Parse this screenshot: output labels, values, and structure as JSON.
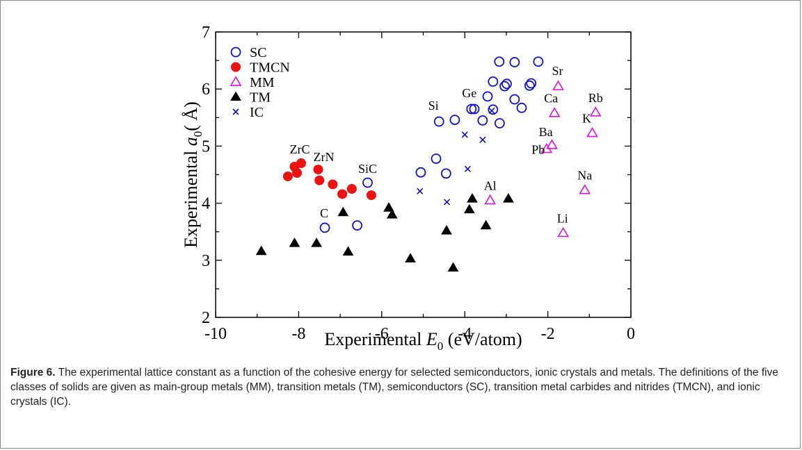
{
  "caption": {
    "label": "Figure 6.",
    "text": " The experimental lattice constant as a function of the cohesive energy for selected semiconductors, ionic crystals and metals. The definitions of the five classes of solids are given as main-group metals (MM), transition metals (TM), semiconductors (SC), transition metal carbides and nitrides (TMCN), and ionic crystals (IC)."
  },
  "chart_data": {
    "type": "scatter",
    "xlabel_prefix": "Experimental ",
    "xlabel_var": "E",
    "xlabel_sub": "0",
    "xlabel_suffix": " (eV/atom)",
    "ylabel_prefix": "Experimental ",
    "ylabel_var": "a",
    "ylabel_sub": "0",
    "ylabel_suffix": "( Å)",
    "xlim": [
      -10,
      0
    ],
    "ylim": [
      2,
      7
    ],
    "xticks": [
      -10,
      -8,
      -6,
      -4,
      -2,
      0
    ],
    "yticks": [
      2,
      3,
      4,
      5,
      6,
      7
    ],
    "legend_position": "top-left",
    "colors": {
      "SC": "#1010d0",
      "TMCN": "#ee1111",
      "MM": "#dd11dd",
      "TM": "#000000",
      "IC": "#1010d0"
    },
    "series": [
      {
        "name": "SC",
        "marker": "open-circle",
        "points": [
          [
            -7.37,
            3.57
          ],
          [
            -6.59,
            3.61
          ],
          [
            -6.34,
            4.36
          ],
          [
            -5.06,
            4.54
          ],
          [
            -4.69,
            4.78
          ],
          [
            -4.45,
            4.52
          ],
          [
            -4.62,
            5.43
          ],
          [
            -4.24,
            5.46
          ],
          [
            -3.84,
            5.65
          ],
          [
            -3.77,
            5.65
          ],
          [
            -3.57,
            5.45
          ],
          [
            -3.45,
            5.87
          ],
          [
            -3.32,
            5.64
          ],
          [
            -3.16,
            5.4
          ],
          [
            -3.04,
            6.05
          ],
          [
            -2.99,
            6.09
          ],
          [
            -2.8,
            5.82
          ],
          [
            -2.63,
            5.67
          ],
          [
            -2.44,
            6.06
          ],
          [
            -2.4,
            6.1
          ],
          [
            -3.32,
            6.13
          ],
          [
            -3.17,
            6.48
          ],
          [
            -2.8,
            6.47
          ],
          [
            -2.23,
            6.48
          ]
        ]
      },
      {
        "name": "TMCN",
        "marker": "filled-circle",
        "points": [
          [
            -8.26,
            4.47
          ],
          [
            -8.1,
            4.64
          ],
          [
            -8.04,
            4.53
          ],
          [
            -7.94,
            4.7
          ],
          [
            -7.53,
            4.59
          ],
          [
            -7.5,
            4.4
          ],
          [
            -7.18,
            4.33
          ],
          [
            -6.95,
            4.16
          ],
          [
            -6.72,
            4.25
          ],
          [
            -6.25,
            4.14
          ]
        ]
      },
      {
        "name": "MM",
        "marker": "open-triangle",
        "points": [
          [
            -1.75,
            6.05
          ],
          [
            -1.84,
            5.58
          ],
          [
            -0.85,
            5.59
          ],
          [
            -0.93,
            5.23
          ],
          [
            -1.9,
            5.02
          ],
          [
            -2.03,
            4.95
          ],
          [
            -1.11,
            4.23
          ],
          [
            -3.39,
            4.05
          ],
          [
            -1.63,
            3.48
          ]
        ]
      },
      {
        "name": "TM",
        "marker": "filled-triangle",
        "points": [
          [
            -8.9,
            3.16
          ],
          [
            -8.1,
            3.3
          ],
          [
            -7.57,
            3.3
          ],
          [
            -6.93,
            3.84
          ],
          [
            -6.81,
            3.15
          ],
          [
            -5.83,
            3.92
          ],
          [
            -5.75,
            3.8
          ],
          [
            -5.31,
            3.03
          ],
          [
            -4.28,
            2.87
          ],
          [
            -4.44,
            3.52
          ],
          [
            -3.89,
            3.89
          ],
          [
            -3.82,
            4.08
          ],
          [
            -3.49,
            3.61
          ],
          [
            -2.95,
            4.08
          ]
        ]
      },
      {
        "name": "IC",
        "marker": "cross",
        "points": [
          [
            -5.08,
            4.21
          ],
          [
            -4.43,
            4.02
          ],
          [
            -3.93,
            4.6
          ],
          [
            -4.0,
            5.2
          ],
          [
            -3.57,
            5.11
          ],
          [
            -3.35,
            5.62
          ]
        ]
      }
    ],
    "annotations": [
      {
        "text": "SiC",
        "x": -6.34,
        "y": 4.36
      },
      {
        "text": "ZrC",
        "x": -7.94,
        "y": 4.7
      },
      {
        "text": "ZrN",
        "x": -7.53,
        "y": 4.59
      },
      {
        "text": "C",
        "x": -7.37,
        "y": 3.57
      },
      {
        "text": "Si",
        "x": -4.62,
        "y": 5.43
      },
      {
        "text": "Ge",
        "x": -3.84,
        "y": 5.65
      },
      {
        "text": "Sr",
        "x": -1.75,
        "y": 6.05
      },
      {
        "text": "Ca",
        "x": -1.84,
        "y": 5.58
      },
      {
        "text": "Rb",
        "x": -0.85,
        "y": 5.59
      },
      {
        "text": "K",
        "x": -0.93,
        "y": 5.23
      },
      {
        "text": "Ba",
        "x": -1.9,
        "y": 5.02
      },
      {
        "text": "Pb",
        "x": -2.03,
        "y": 4.95
      },
      {
        "text": "Na",
        "x": -1.11,
        "y": 4.23
      },
      {
        "text": "Al",
        "x": -3.39,
        "y": 4.05
      },
      {
        "text": "Li",
        "x": -1.63,
        "y": 3.48
      }
    ]
  }
}
